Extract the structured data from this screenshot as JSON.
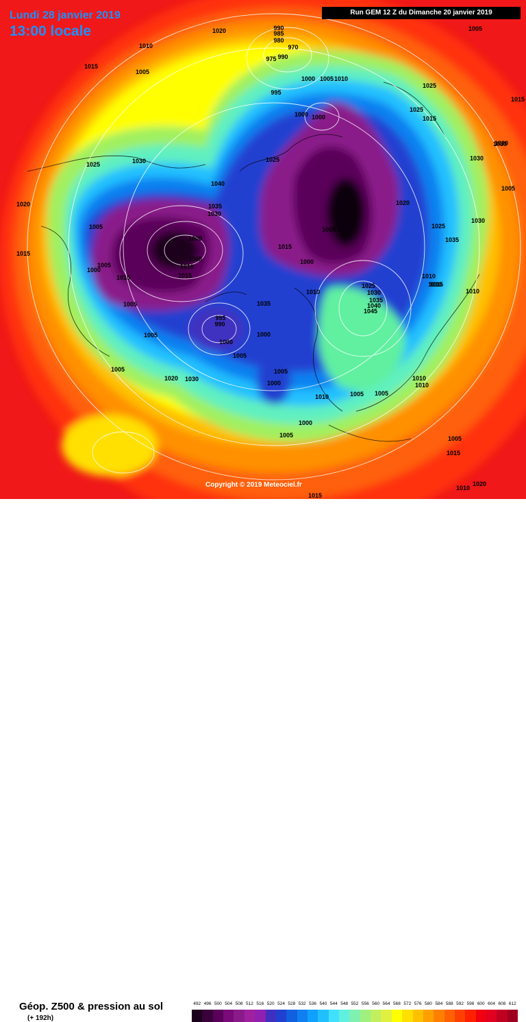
{
  "header": {
    "date": "Lundi 28 janvier 2019",
    "time": "13:00 locale",
    "run": "Run GEM 12 Z du Dimanche 20 janvier 2019"
  },
  "copyright": "Copyright © 2019 Meteociel.fr",
  "footer": {
    "product": "Géop. Z500 & pression au sol",
    "lead": "(+ 192h)"
  },
  "legend": {
    "values": [
      "492",
      "496",
      "500",
      "504",
      "508",
      "512",
      "516",
      "520",
      "524",
      "528",
      "532",
      "536",
      "540",
      "544",
      "548",
      "552",
      "556",
      "560",
      "564",
      "568",
      "572",
      "576",
      "580",
      "584",
      "588",
      "592",
      "596",
      "600",
      "604",
      "608",
      "612"
    ],
    "colors": [
      "#1a001a",
      "#3a003a",
      "#5a005a",
      "#7a0a7a",
      "#8a1a8a",
      "#a020a0",
      "#9020b0",
      "#4030c0",
      "#2040d0",
      "#1060e0",
      "#1080f0",
      "#10a0ff",
      "#20c0ff",
      "#40e0ff",
      "#60f0e0",
      "#80f0b0",
      "#a0f080",
      "#c0f060",
      "#e0f040",
      "#ffff00",
      "#ffe000",
      "#ffc000",
      "#ffa000",
      "#ff8000",
      "#ff6000",
      "#ff4000",
      "#ff2000",
      "#f00010",
      "#e00020",
      "#c00020",
      "#a00020"
    ]
  },
  "isobars": [
    {
      "text": "1020"
    },
    {
      "text": "1010"
    },
    {
      "text": "1015"
    },
    {
      "text": "1005"
    },
    {
      "text": "990"
    },
    {
      "text": "985"
    },
    {
      "text": "980"
    },
    {
      "text": "970"
    },
    {
      "text": "975"
    },
    {
      "text": "990"
    },
    {
      "text": "995"
    },
    {
      "text": "1000"
    },
    {
      "text": "1005"
    },
    {
      "text": "1010"
    },
    {
      "text": "1000"
    },
    {
      "text": "1000"
    },
    {
      "text": "1025"
    },
    {
      "text": "1015"
    },
    {
      "text": "1030"
    },
    {
      "text": "1030"
    },
    {
      "text": "1030"
    },
    {
      "text": "1025"
    },
    {
      "text": "1040"
    },
    {
      "text": "1035"
    },
    {
      "text": "1030"
    },
    {
      "text": "1005"
    },
    {
      "text": "1000"
    },
    {
      "text": "1005"
    },
    {
      "text": "1010"
    },
    {
      "text": "1015"
    },
    {
      "text": "1005"
    },
    {
      "text": "1000"
    },
    {
      "text": "1015"
    },
    {
      "text": "1025"
    },
    {
      "text": "1020"
    },
    {
      "text": "1025"
    },
    {
      "text": "1035"
    },
    {
      "text": "1005"
    },
    {
      "text": "1015"
    },
    {
      "text": "1000"
    },
    {
      "text": "1020"
    },
    {
      "text": "1015"
    },
    {
      "text": "1010"
    },
    {
      "text": "1005"
    },
    {
      "text": "1025"
    },
    {
      "text": "1030"
    },
    {
      "text": "1035"
    },
    {
      "text": "1040"
    },
    {
      "text": "1045"
    },
    {
      "text": "1030"
    },
    {
      "text": "1025"
    },
    {
      "text": "1020"
    },
    {
      "text": "995"
    },
    {
      "text": "990"
    },
    {
      "text": "1000"
    },
    {
      "text": "1005"
    },
    {
      "text": "1000"
    },
    {
      "text": "1005"
    },
    {
      "text": "1005"
    },
    {
      "text": "1000"
    },
    {
      "text": "1005"
    },
    {
      "text": "1010"
    },
    {
      "text": "1005"
    },
    {
      "text": "1005"
    },
    {
      "text": "1000"
    },
    {
      "text": "1005"
    },
    {
      "text": "1020"
    },
    {
      "text": "1030"
    },
    {
      "text": "1035"
    },
    {
      "text": "1010"
    },
    {
      "text": "1010"
    },
    {
      "text": "1005"
    },
    {
      "text": "1015"
    },
    {
      "text": "1005"
    },
    {
      "text": "1010"
    },
    {
      "text": "1015"
    },
    {
      "text": "1010"
    },
    {
      "text": "1010"
    },
    {
      "text": "1005"
    },
    {
      "text": "1015"
    },
    {
      "text": "1020"
    },
    {
      "text": "1010"
    },
    {
      "text": "1015"
    }
  ]
}
